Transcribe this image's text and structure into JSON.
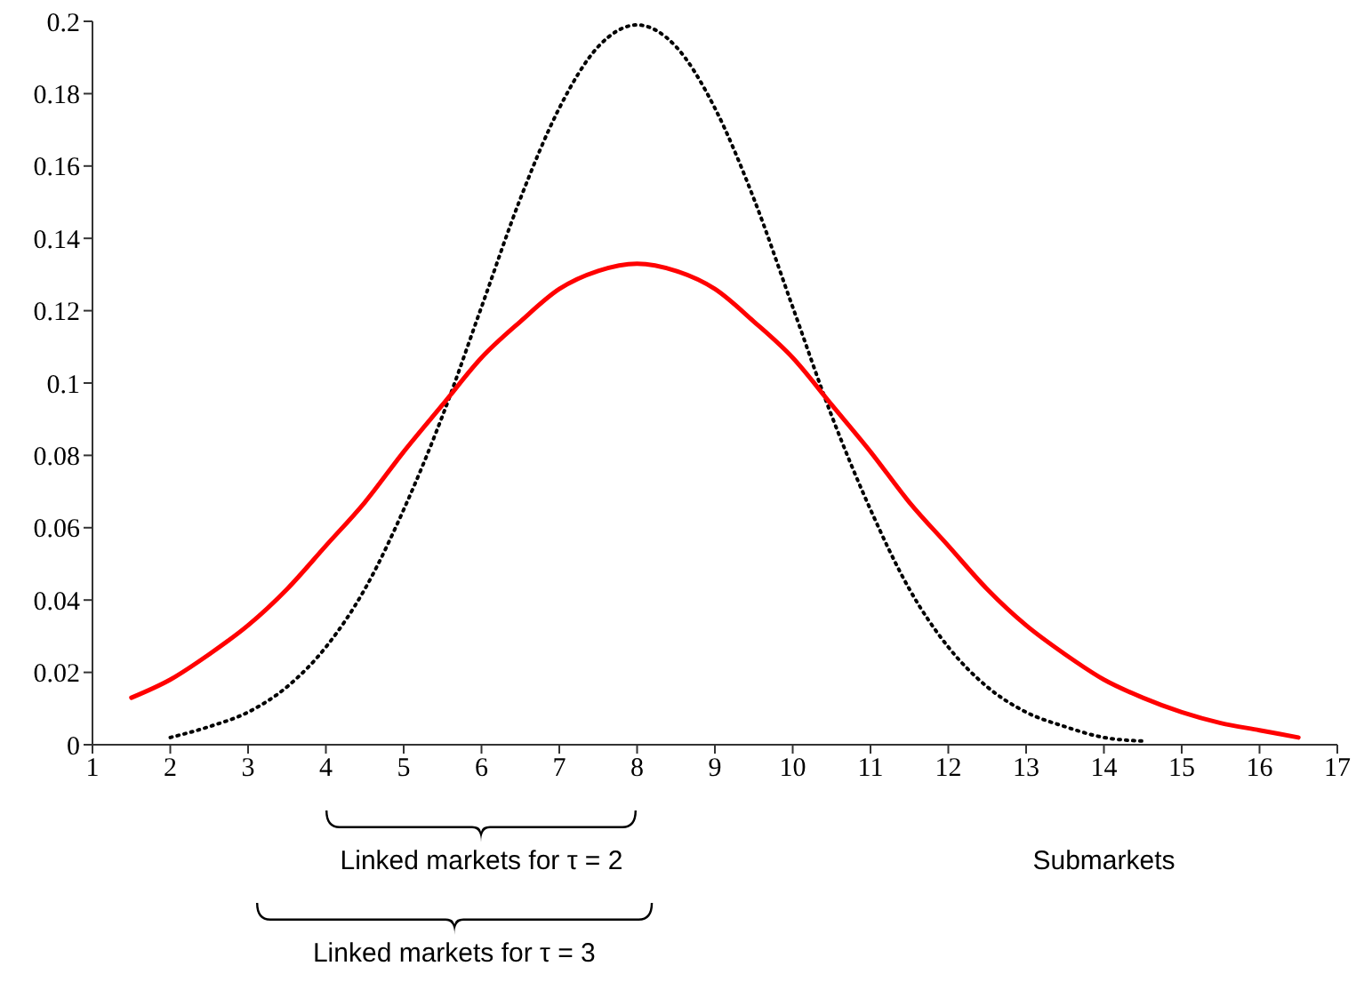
{
  "chart_data": {
    "type": "line",
    "xlabel": "Submarkets",
    "xlim": [
      1,
      17
    ],
    "xticks": [
      1,
      2,
      3,
      4,
      5,
      6,
      7,
      8,
      9,
      10,
      11,
      12,
      13,
      14,
      15,
      16,
      17
    ],
    "ylim": [
      0,
      0.2
    ],
    "yticks": [
      0,
      0.02,
      0.04,
      0.06,
      0.08,
      0.1,
      0.12,
      0.14,
      0.16,
      0.18,
      0.2
    ],
    "grid": false,
    "legend": false,
    "marker": "none",
    "annotations": [
      "Linked markets for τ = 2",
      "Linked markets for τ = 3"
    ],
    "series": [
      {
        "color": "#000000",
        "line_style": "dotted",
        "x": [
          2,
          2.5,
          3,
          3.5,
          4,
          4.5,
          5,
          5.5,
          6,
          6.5,
          7,
          7.5,
          8,
          8.5,
          9,
          9.5,
          10,
          10.5,
          11,
          11.5,
          12,
          12.5,
          13,
          13.5,
          14,
          14.5
        ],
        "values": [
          0.002,
          0.005,
          0.009,
          0.016,
          0.027,
          0.043,
          0.065,
          0.091,
          0.121,
          0.151,
          0.176,
          0.193,
          0.199,
          0.193,
          0.176,
          0.151,
          0.121,
          0.091,
          0.065,
          0.043,
          0.027,
          0.016,
          0.009,
          0.005,
          0.002,
          0.001
        ]
      },
      {
        "color": "#ff0000",
        "line_style": "solid",
        "x": [
          1.5,
          2,
          2.5,
          3,
          3.5,
          4,
          4.5,
          5,
          5.5,
          6,
          6.5,
          7,
          7.5,
          8,
          8.5,
          9,
          9.5,
          10,
          10.5,
          11,
          11.5,
          12,
          12.5,
          13,
          13.5,
          14,
          14.5,
          15,
          15.5,
          16,
          16.5
        ],
        "values": [
          0.013,
          0.018,
          0.025,
          0.033,
          0.043,
          0.055,
          0.067,
          0.081,
          0.094,
          0.107,
          0.117,
          0.126,
          0.131,
          0.133,
          0.131,
          0.126,
          0.117,
          0.107,
          0.094,
          0.081,
          0.067,
          0.055,
          0.043,
          0.033,
          0.025,
          0.018,
          0.013,
          0.009,
          0.006,
          0.004,
          0.002
        ]
      }
    ]
  }
}
